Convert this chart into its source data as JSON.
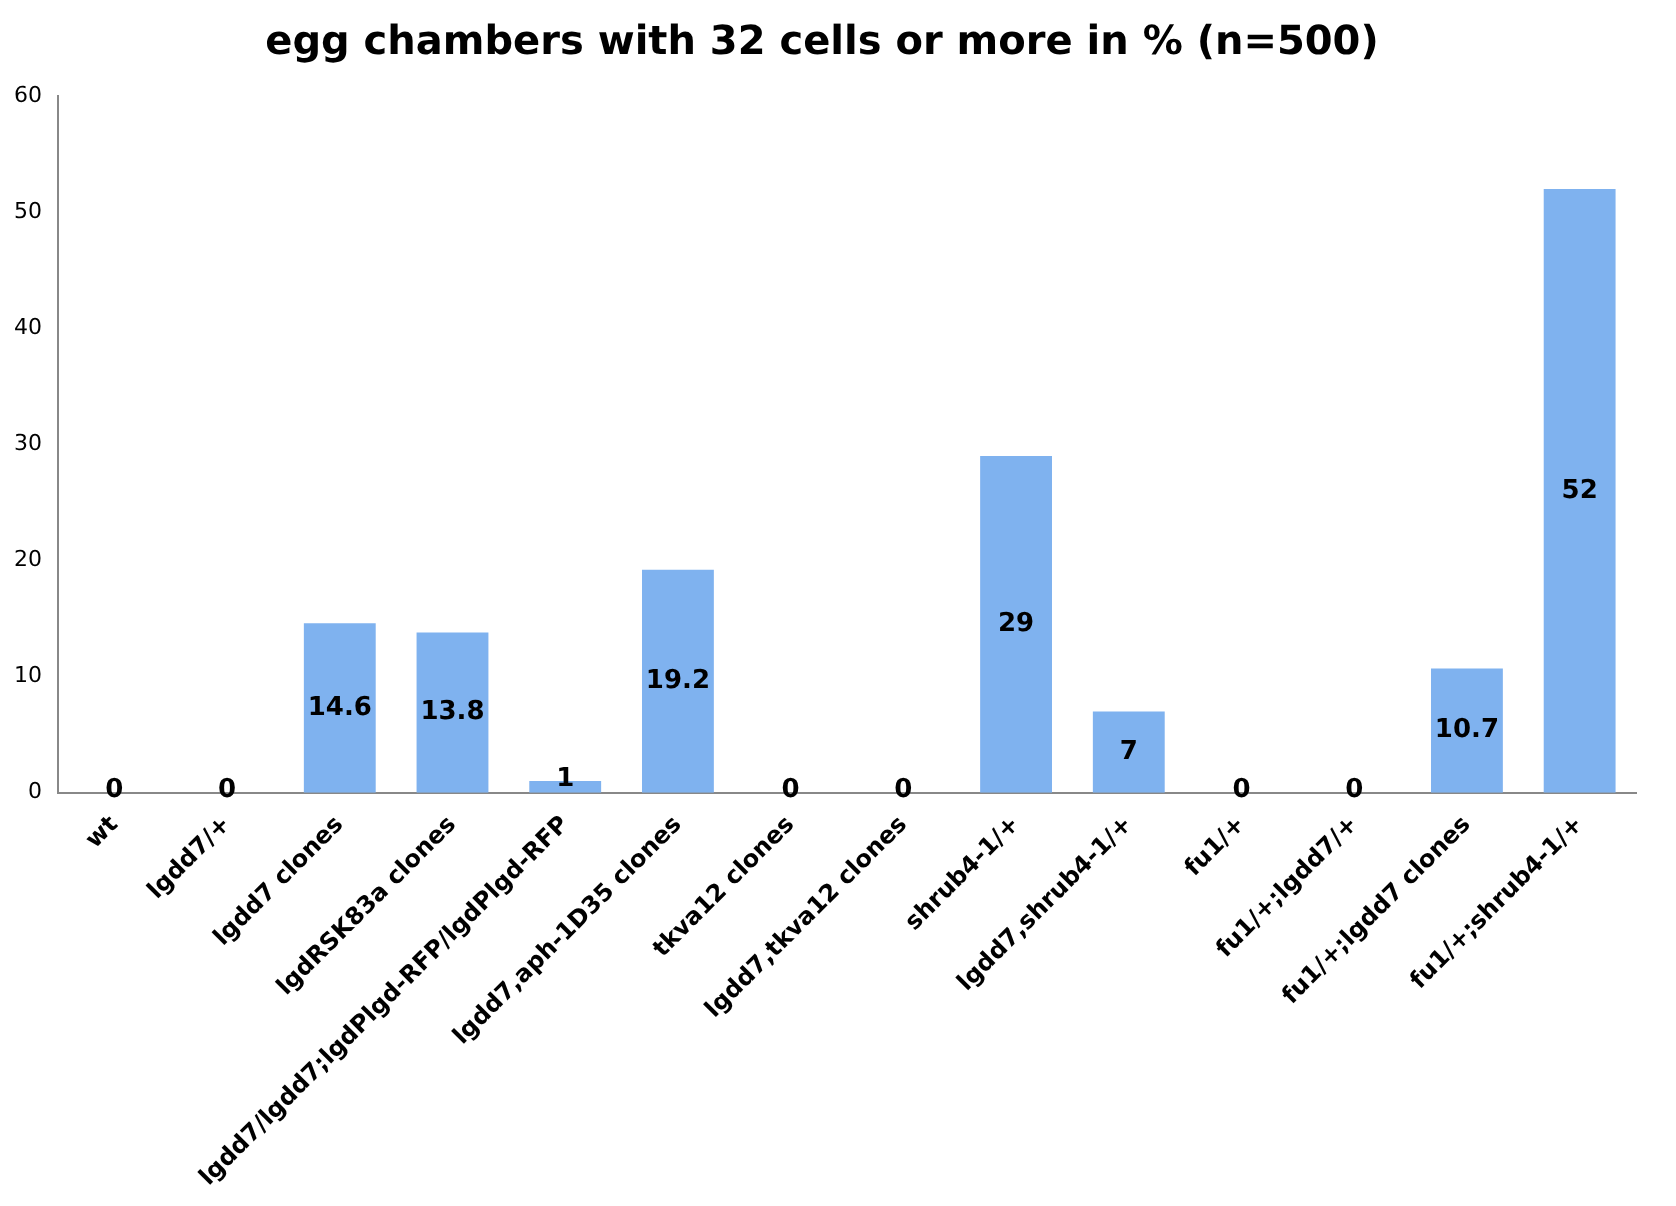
{
  "chart_data": {
    "type": "bar",
    "title": "egg chambers with 32 cells or more in % (n=500)",
    "categories": [
      "wt",
      "lgdd7/+",
      "lgdd7 clones",
      "lgdRSK83a clones",
      "lgdd7/lgdd7;lgdPlgd-RFP/lgdPlgd-RFP",
      "lgdd7,aph-1D35 clones",
      "tkva12 clones",
      "lgdd7,tkva12 clones",
      "shrub4-1/+",
      "lgdd7,shrub4-1/+",
      "fu1/+",
      "fu1/+;lgdd7/+",
      "fu1/+;lgdd7 clones",
      "fu1/+;shrub4-1/+"
    ],
    "values": [
      0,
      0,
      14.6,
      13.8,
      1,
      19.2,
      0,
      0,
      29,
      7,
      0,
      0,
      10.7,
      52
    ],
    "color": "#7fb2ef",
    "ylim": [
      0,
      60
    ],
    "yticks": [
      0,
      10,
      20,
      30,
      40,
      50,
      60
    ],
    "grid": false,
    "legend": false,
    "data_labels": true
  }
}
